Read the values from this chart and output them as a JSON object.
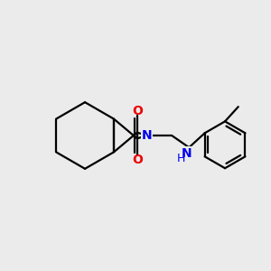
{
  "bg_color": "#ebebeb",
  "bond_color": "#000000",
  "N_color": "#0000ee",
  "O_color": "#ee0000",
  "NH_color": "#0000ee",
  "figsize": [
    3.0,
    3.0
  ],
  "dpi": 100,
  "bond_lw": 1.6,
  "xlim": [
    0,
    10
  ],
  "ylim": [
    0,
    10
  ]
}
